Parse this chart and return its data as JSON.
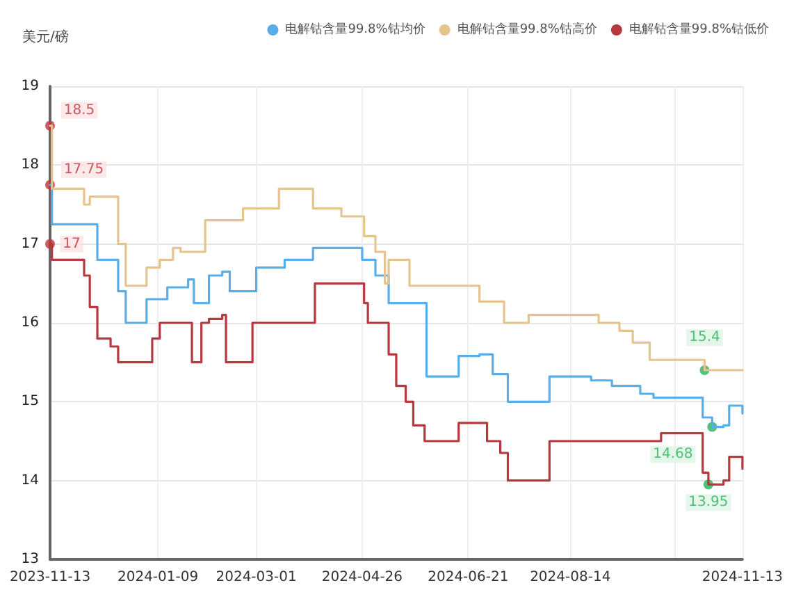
{
  "chart_data": {
    "type": "step",
    "ylabel": "美元/磅",
    "legend": "top",
    "grid": true,
    "marker": "none",
    "xlim": [
      "2023-11-13",
      "2024-11-13"
    ],
    "xticks": [
      "2023-11-13",
      "2024-01-09",
      "2024-03-01",
      "2024-04-26",
      "2024-06-21",
      "2024-08-14",
      {
        "value": "2024-10-08",
        "label": null
      },
      "2024-11-13"
    ],
    "ylim": [
      13,
      19
    ],
    "yticks": [
      13,
      14,
      15,
      16,
      17,
      18,
      19
    ],
    "series": [
      {
        "name": "电解钴含量99.8%钴均价",
        "color": "#5aaee8",
        "x": [
          "2023-11-13",
          "2023-11-14",
          "2023-11-27",
          "2023-12-08",
          "2023-12-19",
          "2023-12-23",
          "2023-12-30",
          "2024-01-03",
          "2024-01-14",
          "2024-01-25",
          "2024-01-28",
          "2024-02-05",
          "2024-02-12",
          "2024-02-16",
          "2024-02-23",
          "2024-03-01",
          "2024-03-16",
          "2024-03-31",
          "2024-04-18",
          "2024-04-26",
          "2024-05-03",
          "2024-05-10",
          "2024-05-30",
          "2024-06-16",
          "2024-06-27",
          "2024-07-04",
          "2024-07-12",
          "2024-07-19",
          "2024-07-30",
          "2024-08-03",
          "2024-08-25",
          "2024-09-05",
          "2024-09-20",
          "2024-09-27",
          "2024-10-15",
          "2024-10-23",
          "2024-10-28",
          "2024-11-03",
          "2024-11-06",
          "2024-11-13"
        ],
        "values": [
          17.75,
          17.25,
          17.25,
          16.8,
          16.4,
          16.0,
          16.0,
          16.3,
          16.45,
          16.55,
          16.25,
          16.6,
          16.65,
          16.4,
          16.4,
          16.7,
          16.8,
          16.95,
          16.95,
          16.8,
          16.6,
          16.25,
          15.32,
          15.58,
          15.6,
          15.35,
          15.0,
          15.0,
          15.0,
          15.32,
          15.27,
          15.2,
          15.1,
          15.05,
          15.05,
          14.8,
          14.68,
          14.7,
          14.95,
          14.85
        ]
      },
      {
        "name": "电解钴含量99.8%钴高价",
        "color": "#e5c48e",
        "x": [
          "2023-11-13",
          "2023-11-14",
          "2023-12-01",
          "2023-12-04",
          "2023-12-19",
          "2023-12-23",
          "2024-01-03",
          "2024-01-10",
          "2024-01-17",
          "2024-01-21",
          "2024-02-03",
          "2024-02-23",
          "2024-03-13",
          "2024-03-31",
          "2024-04-15",
          "2024-04-27",
          "2024-05-03",
          "2024-05-08",
          "2024-05-10",
          "2024-05-21",
          "2024-06-27",
          "2024-07-10",
          "2024-07-23",
          "2024-08-29",
          "2024-09-09",
          "2024-09-16",
          "2024-09-25",
          "2024-10-24",
          "2024-11-13"
        ],
        "values": [
          18.5,
          17.7,
          17.5,
          17.6,
          17.0,
          16.47,
          16.7,
          16.8,
          16.95,
          16.9,
          17.3,
          17.45,
          17.7,
          17.45,
          17.35,
          17.1,
          16.9,
          16.5,
          16.8,
          16.47,
          16.27,
          16.0,
          16.1,
          16.0,
          15.9,
          15.75,
          15.53,
          15.4,
          15.4
        ]
      },
      {
        "name": "电解钴含量99.8%钴低价",
        "color": "#b5393f",
        "x": [
          "2023-11-13",
          "2023-11-14",
          "2023-11-27",
          "2023-12-01",
          "2023-12-04",
          "2023-12-08",
          "2023-12-15",
          "2023-12-19",
          "2024-01-03",
          "2024-01-06",
          "2024-01-10",
          "2024-01-25",
          "2024-01-27",
          "2024-01-31",
          "2024-02-01",
          "2024-02-05",
          "2024-02-12",
          "2024-02-14",
          "2024-02-27",
          "2024-02-28",
          "2024-03-31",
          "2024-04-01",
          "2024-04-22",
          "2024-04-27",
          "2024-04-29",
          "2024-05-07",
          "2024-05-10",
          "2024-05-14",
          "2024-05-19",
          "2024-05-23",
          "2024-05-29",
          "2024-06-12",
          "2024-06-16",
          "2024-06-27",
          "2024-07-01",
          "2024-07-08",
          "2024-07-12",
          "2024-07-30",
          "2024-08-03",
          "2024-09-27",
          "2024-10-01",
          "2024-10-19",
          "2024-10-23",
          "2024-10-26",
          "2024-11-03",
          "2024-11-06",
          "2024-11-13"
        ],
        "values": [
          17.0,
          16.8,
          16.8,
          16.6,
          16.2,
          15.8,
          15.7,
          15.5,
          15.5,
          15.8,
          16.0,
          16.0,
          15.5,
          15.5,
          16.0,
          16.05,
          16.1,
          15.5,
          15.5,
          16.0,
          16.0,
          16.5,
          16.5,
          16.25,
          16.0,
          16.0,
          15.6,
          15.2,
          15.0,
          14.7,
          14.5,
          14.5,
          14.73,
          14.73,
          14.5,
          14.35,
          14.0,
          14.0,
          14.5,
          14.5,
          14.6,
          14.6,
          14.1,
          13.95,
          14.0,
          14.3,
          14.15
        ]
      }
    ],
    "annotations": [
      {
        "text": "18.5",
        "x": "2023-11-13",
        "y": 18.5
      },
      {
        "text": "17.75",
        "x": "2023-11-13",
        "y": 17.75
      },
      {
        "text": "17",
        "x": "2023-11-13",
        "y": 17
      },
      {
        "text": "15.4",
        "x": "2024-10-24",
        "y": 15.4
      },
      {
        "text": "14.68",
        "x": "2024-10-28",
        "y": 14.68
      },
      {
        "text": "13.95",
        "x": "2024-10-26",
        "y": 13.95
      }
    ]
  }
}
